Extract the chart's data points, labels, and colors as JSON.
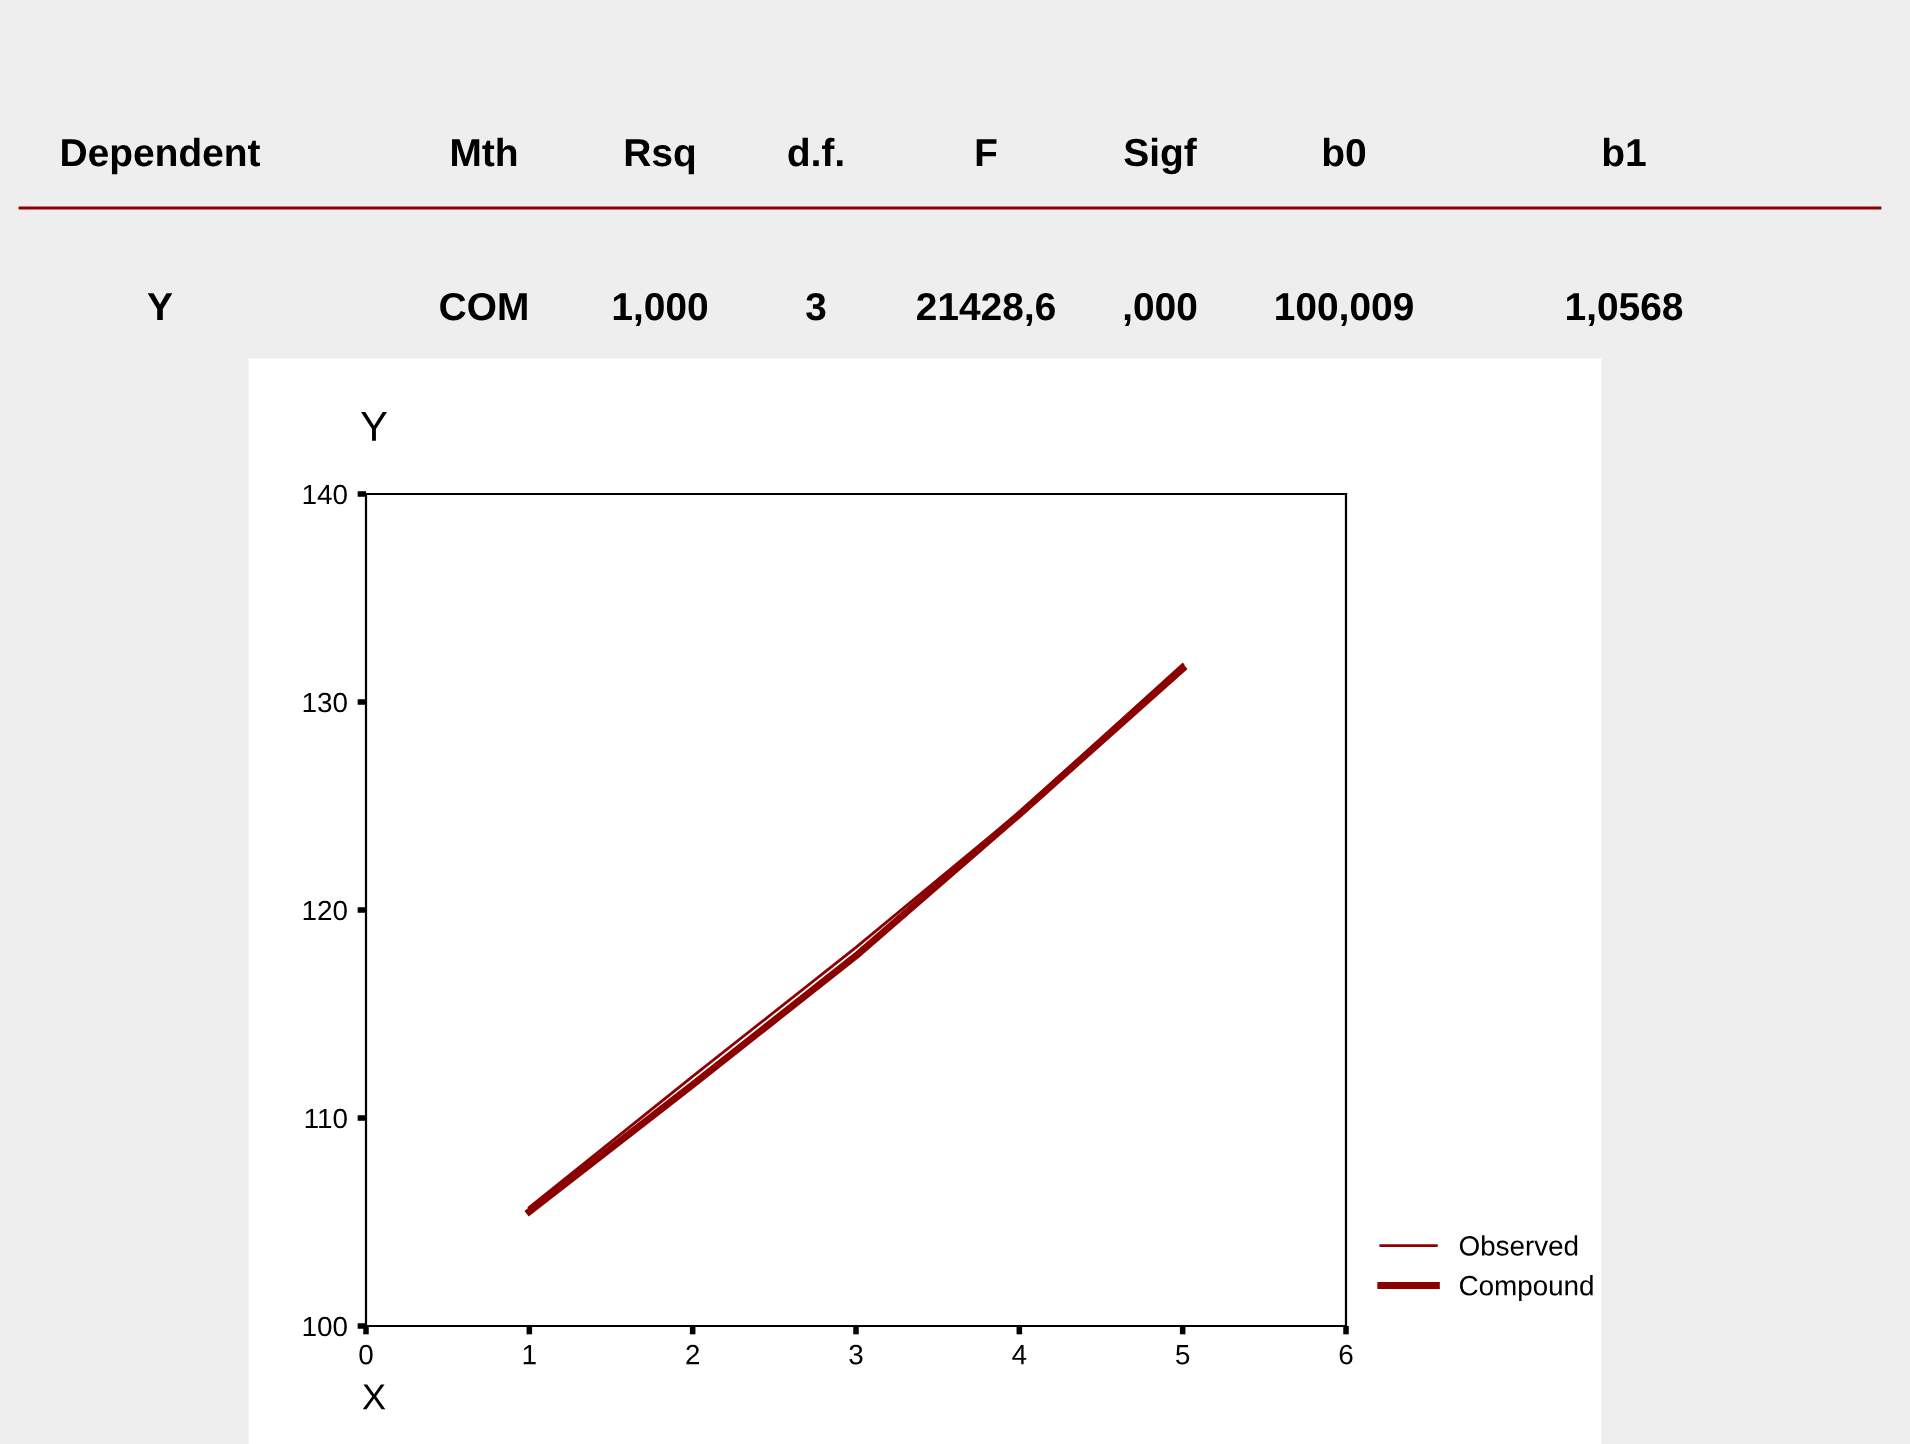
{
  "chart_data": {
    "type": "line",
    "xlabel": "X",
    "ylabel": "Y",
    "x": [
      1,
      2,
      3,
      4,
      5
    ],
    "series": [
      {
        "name": "Observed",
        "color": "#8b0000",
        "values": [
          105.7,
          112,
          118.2,
          124.7,
          131.8
        ]
      },
      {
        "name": "Compound",
        "color": "#8b0000",
        "values": [
          105.5,
          111.6,
          117.8,
          124.6,
          131.6
        ]
      }
    ],
    "xlim": [
      0,
      6
    ],
    "xticks": [
      0,
      1,
      2,
      3,
      4,
      5,
      6
    ],
    "ylim": [
      100,
      140
    ],
    "yticks": [
      100,
      110,
      120,
      130,
      140
    ],
    "grid": false,
    "legend": "bottom right",
    "marker": "none",
    "line_style": "solid",
    "annotations": [
      "Dependent",
      "Mth",
      "Rsq",
      "d.f.",
      "F",
      "Sigf",
      "b0",
      "b1",
      "Y",
      "COM",
      "1,000",
      "3",
      "21428,6",
      ",000",
      "100,009",
      "1,0568"
    ]
  }
}
